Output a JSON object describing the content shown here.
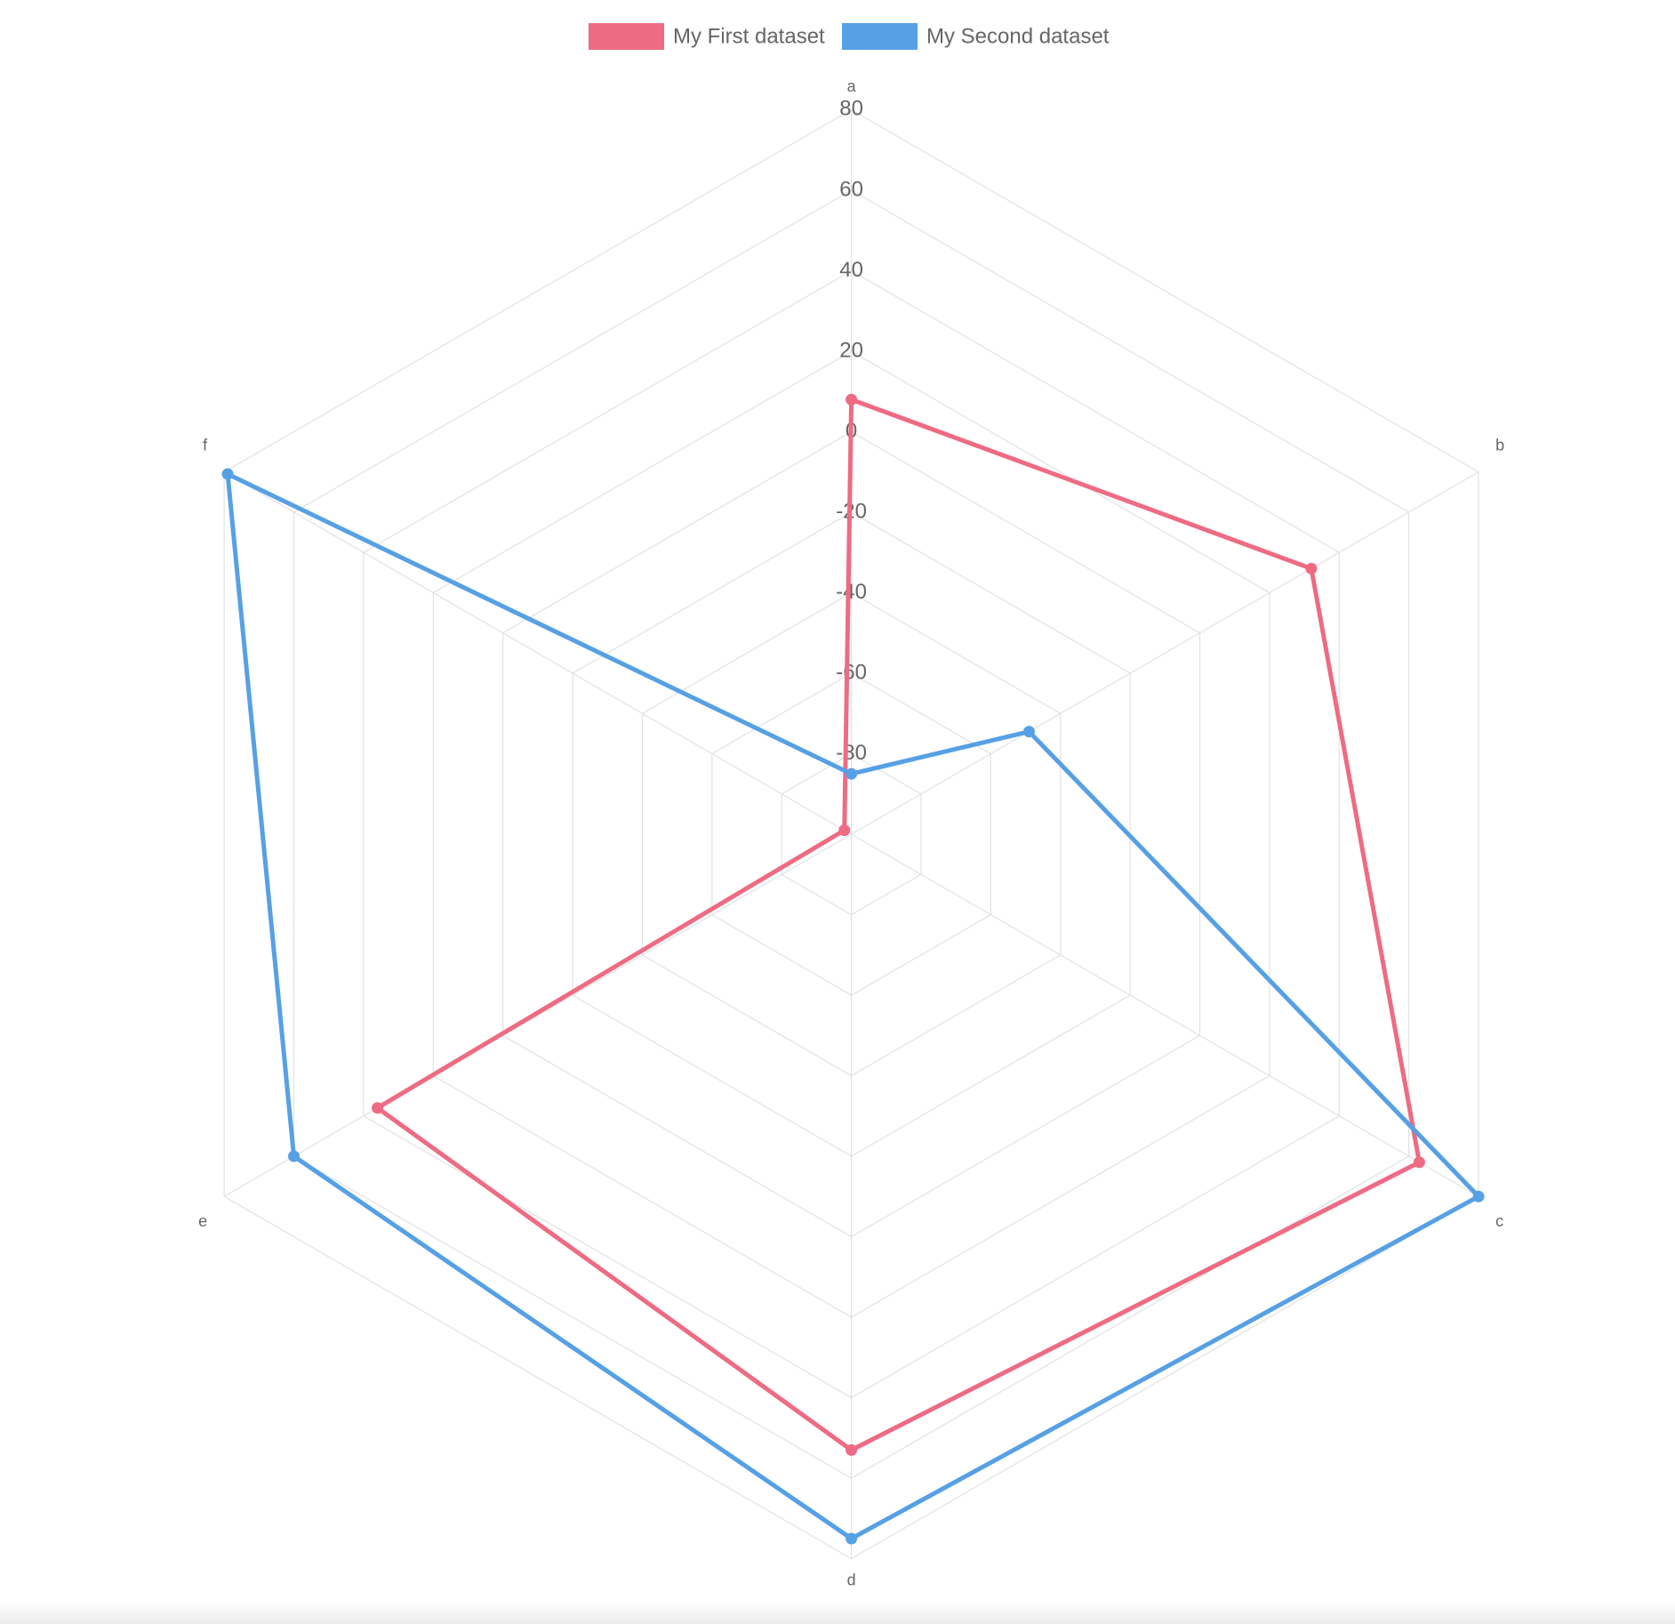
{
  "chart_data": {
    "type": "radar",
    "categories": [
      "a",
      "b",
      "c",
      "d",
      "e",
      "f"
    ],
    "series": [
      {
        "name": "My First dataset",
        "color": "#ee6b83",
        "values": [
          8,
          32,
          63,
          53,
          36,
          -98
        ]
      },
      {
        "name": "My Second dataset",
        "color": "#56a0e5",
        "values": [
          -85,
          -49,
          80,
          75,
          60,
          79
        ]
      }
    ],
    "ylim": [
      -100,
      80
    ],
    "yticks": [
      -80,
      -60,
      -40,
      -20,
      0,
      20,
      40,
      60,
      80
    ],
    "grid": true,
    "legend": "top"
  }
}
